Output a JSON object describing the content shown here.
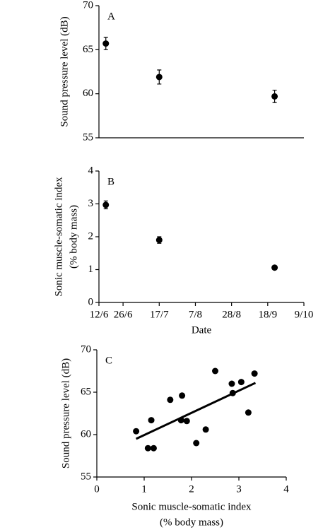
{
  "chart_data": [
    {
      "type": "scatter",
      "panel": "A",
      "ylabel": "Sound  pressure level (dB)",
      "x": [
        167,
        198,
        265
      ],
      "values": [
        65.7,
        61.9,
        59.7
      ],
      "errors": [
        0.7,
        0.8,
        0.7
      ],
      "xlim": [
        163,
        282
      ],
      "ylim": [
        55,
        70
      ],
      "yticks": [
        55,
        60,
        65,
        70
      ],
      "color": "#000000"
    },
    {
      "type": "scatter",
      "panel": "B",
      "ylabel": [
        "Sonic  muscle-somatic  index",
        "(% body  mass)"
      ],
      "xlabel": "Date",
      "x": [
        167,
        198,
        265
      ],
      "values": [
        2.97,
        1.9,
        1.06
      ],
      "errors": [
        0.12,
        0.1,
        0.05
      ],
      "xlim": [
        163,
        282
      ],
      "ylim": [
        0,
        4
      ],
      "yticks": [
        0,
        1,
        2,
        3,
        4
      ],
      "xticks": [
        {
          "value": 163,
          "label": "12/6"
        },
        {
          "value": 177,
          "label": "26/6"
        },
        {
          "value": 198,
          "label": "17/7"
        },
        {
          "value": 219,
          "label": "7/8"
        },
        {
          "value": 240,
          "label": "28/8"
        },
        {
          "value": 261,
          "label": "18/9"
        },
        {
          "value": 282,
          "label": "9/10"
        }
      ],
      "color": "#000000"
    },
    {
      "type": "scatter",
      "panel": "C",
      "ylabel": "Sound pressure level (dB)",
      "xlabel": [
        "Sonic muscle-somatic index",
        "(% body mass)"
      ],
      "x": [
        0.83,
        1.08,
        1.15,
        1.2,
        1.55,
        1.78,
        1.8,
        1.9,
        2.1,
        2.3,
        2.5,
        2.85,
        2.87,
        3.05,
        3.2,
        3.33
      ],
      "values": [
        60.4,
        58.4,
        61.7,
        58.4,
        64.1,
        61.7,
        64.6,
        61.6,
        59.0,
        60.6,
        67.5,
        66.0,
        64.9,
        66.2,
        62.6,
        67.2
      ],
      "fit": {
        "x": [
          0.83,
          3.35
        ],
        "values": [
          59.5,
          66.1
        ]
      },
      "xlim": [
        0,
        4
      ],
      "ylim": [
        55,
        70
      ],
      "xticks": [
        0,
        1,
        2,
        3,
        4
      ],
      "yticks": [
        55,
        60,
        65,
        70
      ],
      "color": "#000000"
    }
  ]
}
